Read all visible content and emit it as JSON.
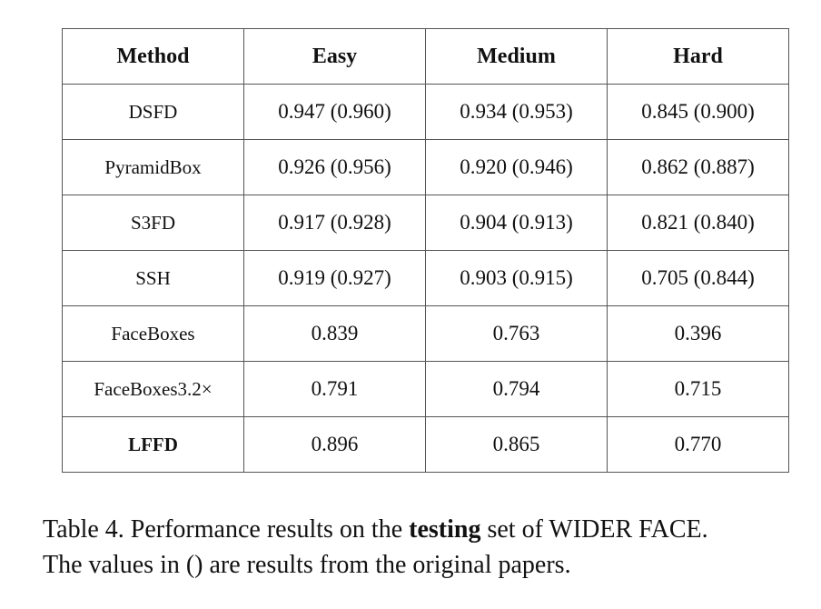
{
  "table": {
    "header": [
      "Method",
      "Easy",
      "Medium",
      "Hard"
    ],
    "rows": [
      [
        "DSFD",
        "0.947 (0.960)",
        "0.934 (0.953)",
        "0.845 (0.900)"
      ],
      [
        "PyramidBox",
        "0.926 (0.956)",
        "0.920 (0.946)",
        "0.862 (0.887)"
      ],
      [
        "S3FD",
        "0.917 (0.928)",
        "0.904 (0.913)",
        "0.821 (0.840)"
      ],
      [
        "SSH",
        "0.919 (0.927)",
        "0.903 (0.915)",
        "0.705 (0.844)"
      ],
      [
        "FaceBoxes",
        "0.839",
        "0.763",
        "0.396"
      ],
      [
        "FaceBoxes3.2×",
        "0.791",
        "0.794",
        "0.715"
      ],
      [
        "LFFD",
        "0.896",
        "0.865",
        "0.770"
      ]
    ]
  },
  "caption": {
    "before": "Table 4. Performance results on the ",
    "bold": "testing",
    "after": " set of WIDER FACE.",
    "line2": "The values in () are results from the original papers."
  }
}
